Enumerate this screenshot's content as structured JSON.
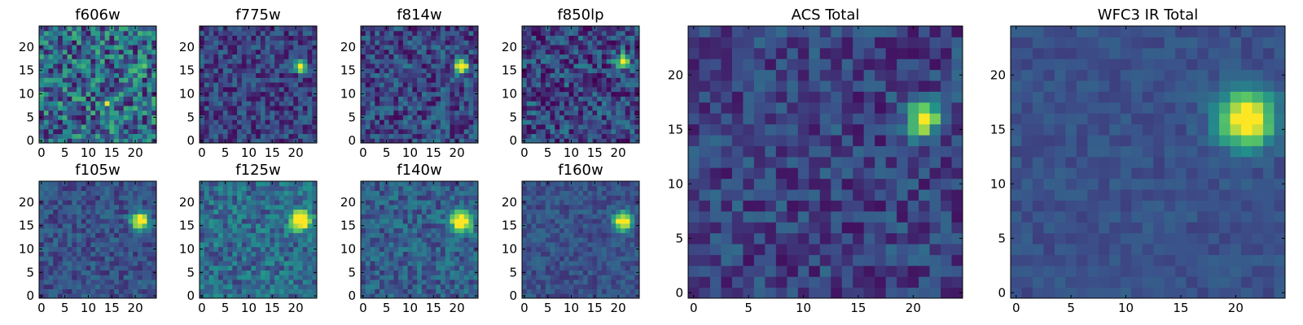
{
  "chart_data": {
    "type": "heatmap",
    "colormap": "viridis",
    "colormap_stops": [
      "#440154",
      "#3b528b",
      "#21918c",
      "#5ec962",
      "#fde725"
    ],
    "panels": [
      {
        "id": "f606w",
        "title": "f606w",
        "xticks": [
          0,
          5,
          10,
          15,
          20
        ],
        "yticks": [
          0,
          5,
          10,
          15,
          20
        ],
        "grid_size": 25,
        "source_x": 21,
        "source_y": 16,
        "source_strength": 0.45,
        "source_width": 0.8,
        "noise": 0.6,
        "base": 0.35,
        "extra_sources": [
          {
            "x": 14,
            "y": 8,
            "s": 0.5
          }
        ]
      },
      {
        "id": "f775w",
        "title": "f775w",
        "xticks": [
          0,
          5,
          10,
          15,
          20
        ],
        "yticks": [
          0,
          5,
          10,
          15,
          20
        ],
        "grid_size": 25,
        "source_x": 21,
        "source_y": 16,
        "source_strength": 0.95,
        "source_width": 0.9,
        "noise": 0.35,
        "base": 0.2,
        "extra_sources": []
      },
      {
        "id": "f814w",
        "title": "f814w",
        "xticks": [
          0,
          5,
          10,
          15,
          20
        ],
        "yticks": [
          0,
          5,
          10,
          15,
          20
        ],
        "grid_size": 25,
        "source_x": 21,
        "source_y": 16,
        "source_strength": 0.9,
        "source_width": 1.0,
        "noise": 0.4,
        "base": 0.22,
        "extra_sources": []
      },
      {
        "id": "f850lp",
        "title": "f850lp",
        "xticks": [
          0,
          5,
          10,
          15,
          20
        ],
        "yticks": [
          0,
          5,
          10,
          15,
          20
        ],
        "grid_size": 25,
        "source_x": 21,
        "source_y": 17,
        "source_strength": 0.85,
        "source_width": 1.1,
        "noise": 0.45,
        "base": 0.22,
        "extra_sources": []
      },
      {
        "id": "f105w",
        "title": "f105w",
        "xticks": [
          0,
          5,
          10,
          15,
          20
        ],
        "yticks": [
          0,
          5,
          10,
          15,
          20
        ],
        "grid_size": 25,
        "source_x": 21,
        "source_y": 16,
        "source_strength": 0.95,
        "source_width": 1.3,
        "noise": 0.25,
        "base": 0.25,
        "extra_sources": []
      },
      {
        "id": "f125w",
        "title": "f125w",
        "xticks": [
          0,
          5,
          10,
          15,
          20
        ],
        "yticks": [
          0,
          5,
          10,
          15,
          20
        ],
        "grid_size": 25,
        "source_x": 21,
        "source_y": 16,
        "source_strength": 0.9,
        "source_width": 1.5,
        "noise": 0.35,
        "base": 0.35,
        "extra_sources": []
      },
      {
        "id": "f140w",
        "title": "f140w",
        "xticks": [
          0,
          5,
          10,
          15,
          20
        ],
        "yticks": [
          0,
          5,
          10,
          15,
          20
        ],
        "grid_size": 25,
        "source_x": 21,
        "source_y": 16,
        "source_strength": 0.95,
        "source_width": 1.6,
        "noise": 0.3,
        "base": 0.3,
        "extra_sources": []
      },
      {
        "id": "f160w",
        "title": "f160w",
        "xticks": [
          0,
          5,
          10,
          15,
          20
        ],
        "yticks": [
          0,
          5,
          10,
          15,
          20
        ],
        "grid_size": 25,
        "source_x": 21,
        "source_y": 16,
        "source_strength": 0.95,
        "source_width": 1.3,
        "noise": 0.2,
        "base": 0.25,
        "extra_sources": []
      },
      {
        "id": "acs-total",
        "title": "ACS Total",
        "xticks": [
          0,
          5,
          10,
          15,
          20
        ],
        "yticks": [
          0,
          5,
          10,
          15,
          20
        ],
        "grid_size": 25,
        "source_x": 21,
        "source_y": 16,
        "source_strength": 0.95,
        "source_width": 1.0,
        "noise": 0.3,
        "base": 0.2,
        "extra_sources": []
      },
      {
        "id": "wfc3-ir-total",
        "title": "WFC3 IR Total",
        "xticks": [
          0,
          5,
          10,
          15,
          20
        ],
        "yticks": [
          0,
          5,
          10,
          15,
          20
        ],
        "grid_size": 25,
        "source_x": 21,
        "source_y": 16,
        "source_strength": 0.95,
        "source_width": 1.7,
        "noise": 0.12,
        "base": 0.25,
        "extra_sources": []
      }
    ]
  }
}
